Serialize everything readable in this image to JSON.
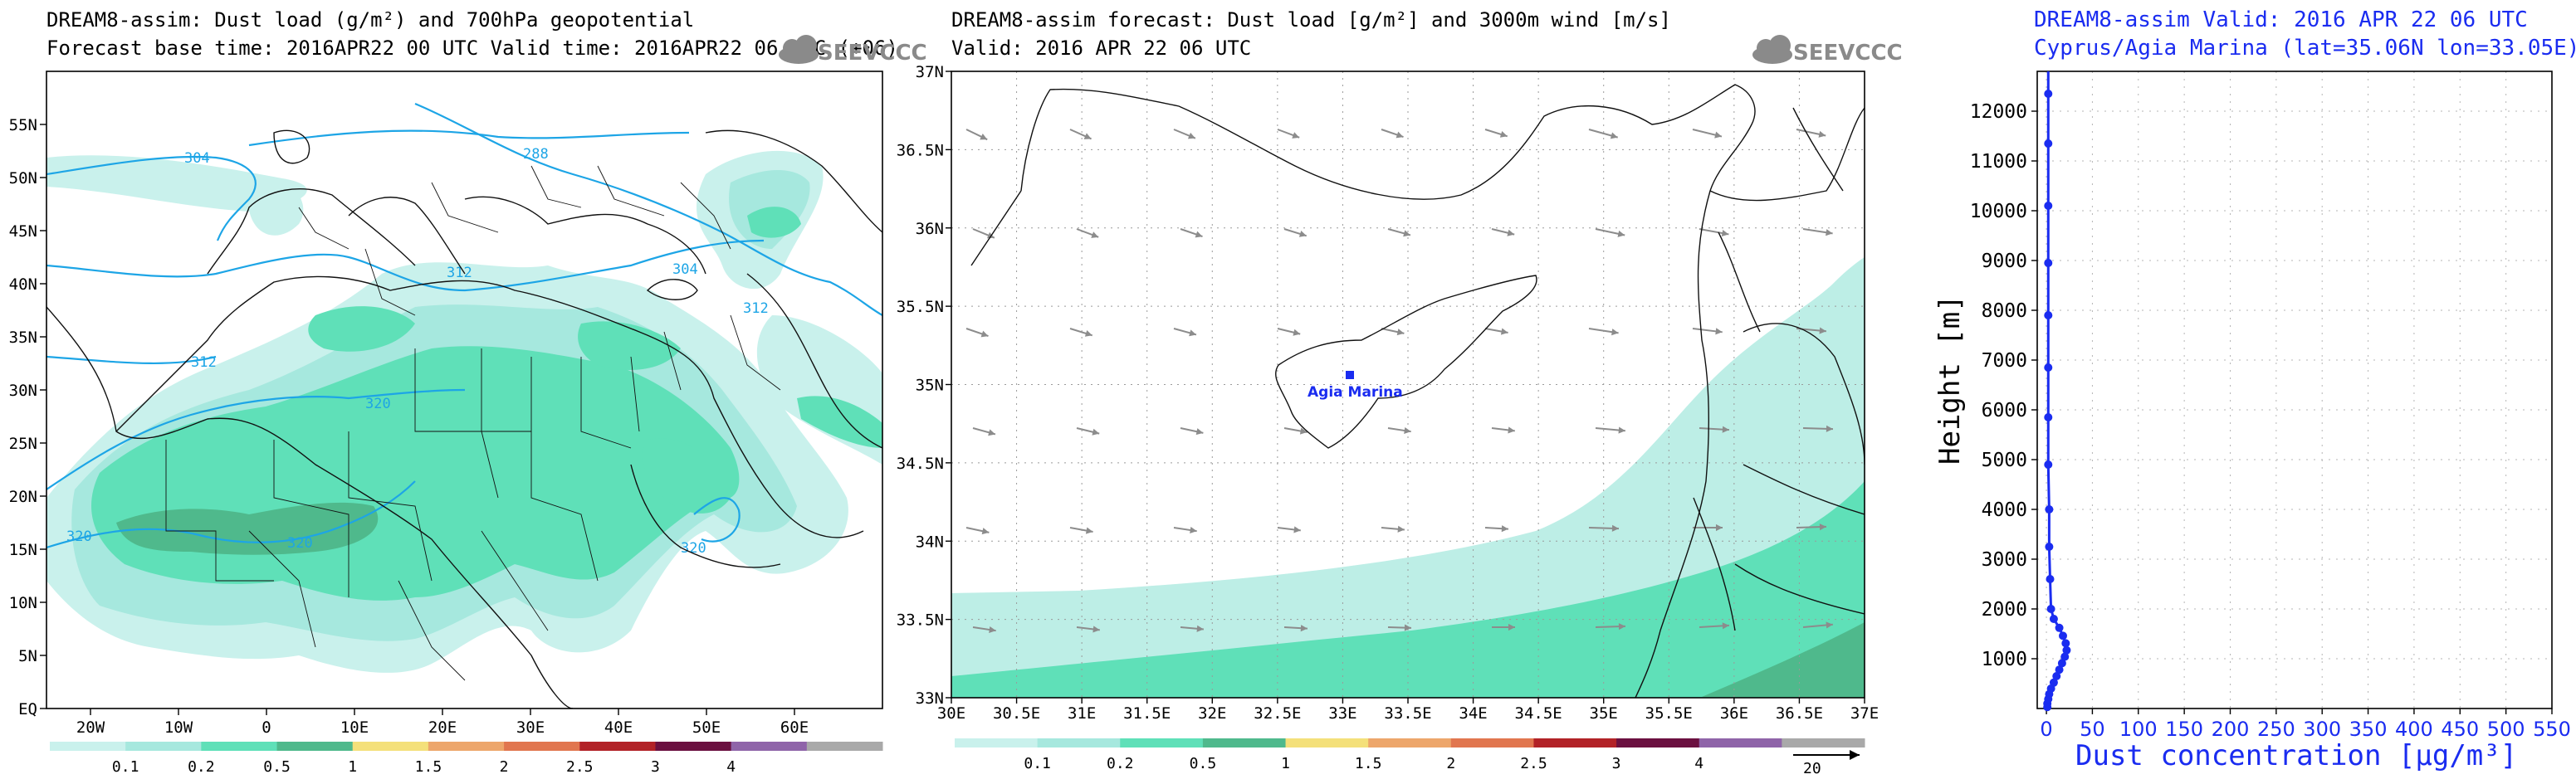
{
  "panels": [
    {
      "title_line1": "DREAM8-assim: Dust load (g/m²) and 700hPa geopotential",
      "title_line2": "Forecast base time: 2016APR22 00 UTC  Valid time: 2016APR22 06 UTC  (+06)",
      "logo_text": "SEEVCCC",
      "lat_ticks": [
        "55N",
        "50N",
        "45N",
        "40N",
        "35N",
        "30N",
        "25N",
        "20N",
        "15N",
        "10N",
        "5N",
        "EQ"
      ],
      "lon_ticks": [
        "20W",
        "10W",
        "0",
        "10E",
        "20E",
        "30E",
        "40E",
        "50E",
        "60E"
      ],
      "contour_labels": [
        "304",
        "288",
        "312",
        "304",
        "312",
        "312",
        "320",
        "320",
        "320",
        "320"
      ]
    },
    {
      "title_line1": "DREAM8-assim forecast: Dust load [g/m²] and 3000m wind [m/s]",
      "title_line2": "Valid: 2016 APR 22  06 UTC",
      "logo_text": "SEEVCCC",
      "lat_ticks": [
        "37N",
        "36.5N",
        "36N",
        "35.5N",
        "35N",
        "34.5N",
        "34N",
        "33.5N",
        "33N"
      ],
      "lon_ticks": [
        "30E",
        "30.5E",
        "31E",
        "31.5E",
        "32E",
        "32.5E",
        "33E",
        "33.5E",
        "34E",
        "34.5E",
        "35E",
        "35.5E",
        "36E",
        "36.5E",
        "37E"
      ],
      "site_label": "Agia Marina",
      "wind_ref": "20"
    }
  ],
  "colorbar": {
    "labels": [
      "0.1",
      "0.2",
      "0.5",
      "1",
      "1.5",
      "2",
      "2.5",
      "3",
      "4"
    ],
    "colors": [
      "#c9f1ec",
      "#a6e8de",
      "#5fe0b8",
      "#4fb98c",
      "#f4e07a",
      "#eda66b",
      "#e1764f",
      "#b22227",
      "#6b1040",
      "#8f64a9",
      "#a9a9a9"
    ]
  },
  "chart_data": [
    {
      "type": "heatmap",
      "title": "DREAM8-assim: Dust load (g/m²) and 700hPa geopotential",
      "xlim": [
        -25,
        70
      ],
      "ylim": [
        0,
        60
      ],
      "x_ticks": [
        -20,
        -10,
        0,
        10,
        20,
        30,
        40,
        50,
        60
      ],
      "y_ticks": [
        55,
        50,
        45,
        40,
        35,
        30,
        25,
        20,
        15,
        10,
        5,
        0
      ],
      "levels": [
        0.1,
        0.2,
        0.5,
        1,
        1.5,
        2,
        2.5,
        3,
        4
      ],
      "contour_values": [
        288,
        304,
        312,
        320
      ]
    },
    {
      "type": "heatmap",
      "title": "DREAM8-assim forecast: Dust load [g/m²] and 3000m wind [m/s]",
      "xlim": [
        30,
        37
      ],
      "ylim": [
        33,
        37
      ],
      "x_ticks": [
        30,
        30.5,
        31,
        31.5,
        32,
        32.5,
        33,
        33.5,
        34,
        34.5,
        35,
        35.5,
        36,
        36.5,
        37
      ],
      "y_ticks": [
        37,
        36.5,
        36,
        35.5,
        35,
        34.5,
        34,
        33.5,
        33
      ],
      "site": {
        "name": "Agia Marina",
        "lat": 35.06,
        "lon": 33.05
      }
    },
    {
      "type": "line",
      "title_line1": "DREAM8-assim   Valid: 2016 APR 22   06 UTC",
      "title_line2": "Cyprus/Agia Marina (lat=35.06N lon=33.05E)",
      "xlabel": "Dust concentration [μg/m³]",
      "ylabel": "Height [m]",
      "xlim": [
        -10,
        550
      ],
      "ylim": [
        0,
        12800
      ],
      "x_ticks": [
        0,
        50,
        100,
        150,
        200,
        250,
        300,
        350,
        400,
        450,
        500,
        550
      ],
      "y_ticks": [
        1000,
        2000,
        3000,
        4000,
        5000,
        6000,
        7000,
        8000,
        9000,
        10000,
        11000,
        12000
      ],
      "series": [
        {
          "name": "Dust concentration",
          "x": [
            1,
            1,
            2,
            3,
            5,
            8,
            11,
            14,
            17,
            20,
            22,
            21,
            18,
            14,
            8,
            5,
            4,
            3,
            3,
            2,
            2,
            2,
            2,
            2,
            2,
            2,
            2,
            2
          ],
          "y": [
            30,
            100,
            190,
            290,
            400,
            520,
            650,
            780,
            910,
            1040,
            1170,
            1310,
            1460,
            1620,
            1800,
            2000,
            2600,
            3250,
            4000,
            4900,
            5850,
            6850,
            7900,
            8950,
            10100,
            11350,
            12350,
            12800
          ]
        }
      ]
    }
  ]
}
